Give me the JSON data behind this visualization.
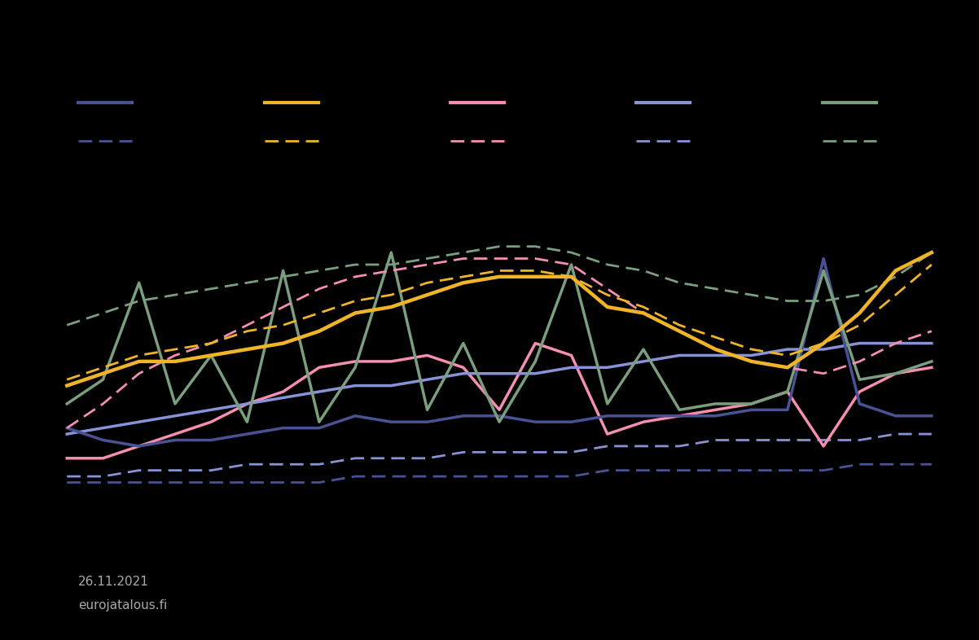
{
  "background_color": "#000000",
  "text_color": "#aaaaaa",
  "date_label": "26.11.2021",
  "source_label": "eurojatalous.fi",
  "colors": {
    "blue": "#4a5296",
    "yellow": "#f0b429",
    "pink": "#f48fb1",
    "periwinkle": "#8892d6",
    "green": "#7a9e7e"
  },
  "n_points": 25,
  "series": {
    "blue_solid": [
      46,
      44,
      43,
      44,
      44,
      45,
      46,
      46,
      48,
      47,
      47,
      48,
      48,
      47,
      47,
      48,
      48,
      48,
      48,
      49,
      49,
      74,
      50,
      48,
      48
    ],
    "blue_dashed": [
      37,
      37,
      37,
      37,
      37,
      37,
      37,
      37,
      38,
      38,
      38,
      38,
      38,
      38,
      38,
      39,
      39,
      39,
      39,
      39,
      39,
      39,
      40,
      40,
      40
    ],
    "yellow_solid": [
      53,
      55,
      57,
      57,
      58,
      59,
      60,
      62,
      65,
      66,
      68,
      70,
      71,
      71,
      71,
      66,
      65,
      62,
      59,
      57,
      56,
      60,
      65,
      72,
      75
    ],
    "yellow_dashed": [
      54,
      56,
      58,
      59,
      60,
      62,
      63,
      65,
      67,
      68,
      70,
      71,
      72,
      72,
      71,
      68,
      66,
      63,
      61,
      59,
      58,
      60,
      63,
      68,
      73
    ],
    "pink_solid": [
      41,
      41,
      43,
      45,
      47,
      50,
      52,
      56,
      57,
      57,
      58,
      56,
      49,
      60,
      58,
      45,
      47,
      48,
      49,
      50,
      52,
      43,
      52,
      55,
      56
    ],
    "pink_dashed": [
      46,
      50,
      55,
      58,
      60,
      63,
      66,
      69,
      71,
      72,
      73,
      74,
      74,
      74,
      73,
      69,
      65,
      62,
      59,
      57,
      56,
      55,
      57,
      60,
      62
    ],
    "periwinkle_solid": [
      45,
      46,
      47,
      48,
      49,
      50,
      51,
      52,
      53,
      53,
      54,
      55,
      55,
      55,
      56,
      56,
      57,
      58,
      58,
      58,
      59,
      59,
      60,
      60,
      60
    ],
    "periwinkle_dashed": [
      38,
      38,
      39,
      39,
      39,
      40,
      40,
      40,
      41,
      41,
      41,
      42,
      42,
      42,
      42,
      43,
      43,
      43,
      44,
      44,
      44,
      44,
      44,
      45,
      45
    ],
    "green_solid": [
      50,
      54,
      70,
      50,
      58,
      47,
      72,
      47,
      56,
      75,
      49,
      60,
      47,
      57,
      73,
      50,
      59,
      49,
      50,
      50,
      52,
      72,
      54,
      55,
      57
    ],
    "green_dashed": [
      63,
      65,
      67,
      68,
      69,
      70,
      71,
      72,
      73,
      73,
      74,
      75,
      76,
      76,
      75,
      73,
      72,
      70,
      69,
      68,
      67,
      67,
      68,
      71,
      75
    ]
  }
}
